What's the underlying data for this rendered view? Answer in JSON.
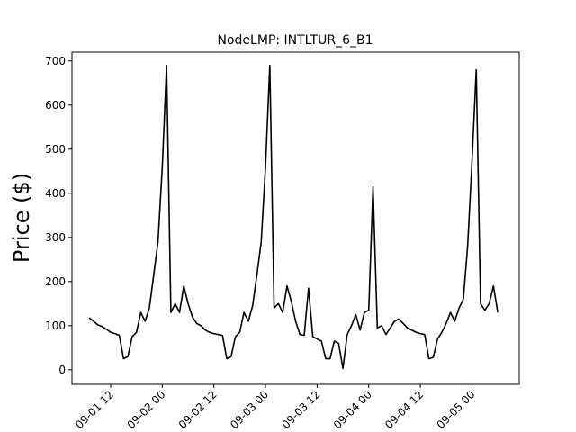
{
  "chart_data": {
    "type": "line",
    "title": "NodeLMP: INTLTUR_6_B1",
    "y_label": "Price ($)",
    "x": [
      "09-01 07",
      "09-01 08",
      "09-01 09",
      "09-01 10",
      "09-01 11",
      "09-01 12",
      "09-01 13",
      "09-01 14",
      "09-01 15",
      "09-01 16",
      "09-01 17",
      "09-01 18",
      "09-01 19",
      "09-01 20",
      "09-01 21",
      "09-01 22",
      "09-01 23",
      "09-02 00",
      "09-02 01",
      "09-02 02",
      "09-02 03",
      "09-02 04",
      "09-02 05",
      "09-02 06",
      "09-02 07",
      "09-02 08",
      "09-02 09",
      "09-02 10",
      "09-02 11",
      "09-02 12",
      "09-02 13",
      "09-02 14",
      "09-02 15",
      "09-02 16",
      "09-02 17",
      "09-02 18",
      "09-02 19",
      "09-02 20",
      "09-02 21",
      "09-02 22",
      "09-02 23",
      "09-03 00",
      "09-03 01",
      "09-03 02",
      "09-03 03",
      "09-03 04",
      "09-03 05",
      "09-03 06",
      "09-03 07",
      "09-03 08",
      "09-03 09",
      "09-03 10",
      "09-03 11",
      "09-03 12",
      "09-03 13",
      "09-03 14",
      "09-03 15",
      "09-03 16",
      "09-03 17",
      "09-03 18",
      "09-03 19",
      "09-03 20",
      "09-03 21",
      "09-03 22",
      "09-03 23",
      "09-04 00",
      "09-04 01",
      "09-04 02",
      "09-04 03",
      "09-04 04",
      "09-04 05",
      "09-04 06",
      "09-04 07",
      "09-04 08",
      "09-04 09",
      "09-04 10",
      "09-04 11",
      "09-04 12",
      "09-04 13",
      "09-04 14",
      "09-04 15",
      "09-04 16",
      "09-04 17",
      "09-04 18",
      "09-04 19",
      "09-04 20",
      "09-04 21",
      "09-04 22",
      "09-04 23",
      "09-05 00",
      "09-05 01",
      "09-05 02",
      "09-05 03",
      "09-05 04",
      "09-05 05",
      "09-05 06"
    ],
    "series": [
      {
        "color": "#000000",
        "values": [
          118,
          110,
          102,
          98,
          92,
          85,
          82,
          78,
          25,
          30,
          75,
          85,
          130,
          110,
          140,
          215,
          290,
          460,
          690,
          130,
          150,
          130,
          190,
          150,
          120,
          105,
          100,
          90,
          85,
          82,
          80,
          78,
          25,
          30,
          75,
          85,
          130,
          110,
          145,
          215,
          290,
          460,
          690,
          140,
          150,
          130,
          190,
          155,
          110,
          80,
          78,
          185,
          75,
          70,
          65,
          25,
          25,
          65,
          60,
          3,
          80,
          100,
          125,
          90,
          130,
          135,
          415,
          95,
          100,
          80,
          95,
          110,
          115,
          105,
          95,
          90,
          85,
          82,
          80,
          25,
          28,
          70,
          85,
          105,
          130,
          110,
          140,
          160,
          280,
          470,
          680,
          150,
          135,
          150,
          190,
          130
        ]
      }
    ],
    "xlim": [
      "09-01 03",
      "09-05 11"
    ],
    "xticks": [
      "09-01 12",
      "09-02 00",
      "09-02 12",
      "09-03 00",
      "09-03 12",
      "09-04 00",
      "09-04 12",
      "09-05 00"
    ],
    "ylim": [
      -33,
      720
    ],
    "yticks": [
      0,
      100,
      200,
      300,
      400,
      500,
      600,
      700
    ]
  }
}
